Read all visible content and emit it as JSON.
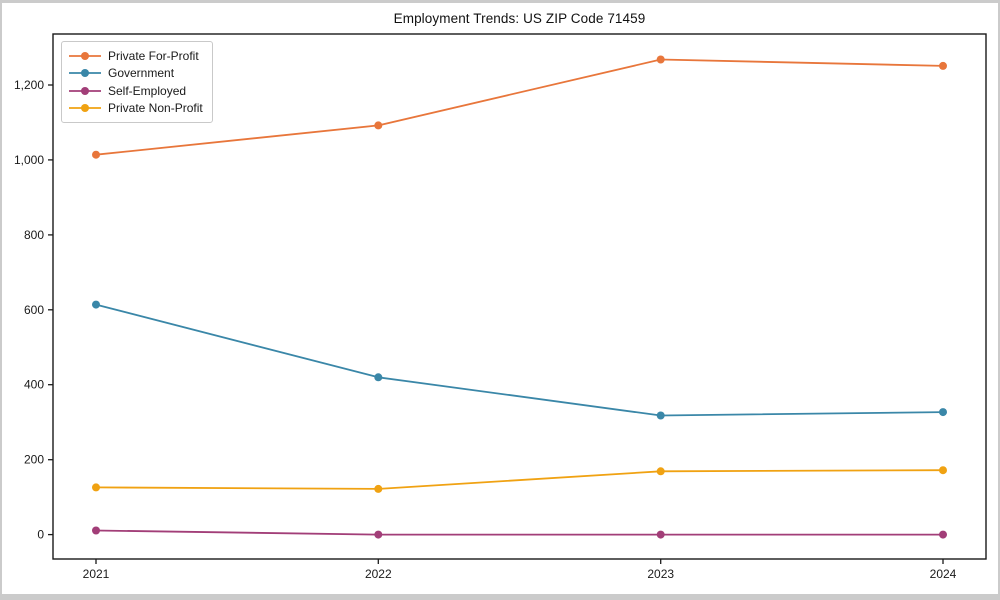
{
  "window": {
    "frame_color": "#cbcbcb",
    "background_color": "#ffffff"
  },
  "chart_data": {
    "type": "line",
    "title": "Employment Trends: US ZIP Code 71459",
    "x": [
      "2021",
      "2022",
      "2023",
      "2024"
    ],
    "series": [
      {
        "name": "Private For-Profit",
        "color": "#e8763b",
        "values": [
          1014,
          1092,
          1268,
          1251
        ]
      },
      {
        "name": "Government",
        "color": "#3a87a8",
        "values": [
          614,
          420,
          318,
          327
        ]
      },
      {
        "name": "Self-Employed",
        "color": "#a23e78",
        "values": [
          11,
          0,
          0,
          0
        ]
      },
      {
        "name": "Private Non-Profit",
        "color": "#f0a212",
        "values": [
          126,
          122,
          169,
          172
        ]
      }
    ],
    "xlabel": "",
    "ylabel": "",
    "ylim": [
      -65,
      1336
    ],
    "yticks": [
      0,
      200,
      400,
      600,
      800,
      1000,
      1200
    ],
    "ytick_labels": [
      "0",
      "200",
      "400",
      "600",
      "800",
      "1,000",
      "1,200"
    ],
    "grid": false,
    "legend_position": "upper-left",
    "marker": "circle",
    "axis_color": "#1a1a1a",
    "tick_label_color": "#1a1a1a"
  }
}
